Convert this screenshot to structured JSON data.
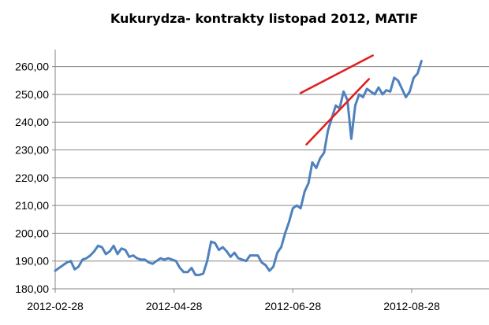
{
  "chart_data": {
    "type": "line",
    "title": "Kukurydza- kontrakty listopad 2012, MATIF",
    "xlabel": "",
    "ylabel": "",
    "ylim": [
      180,
      265
    ],
    "y_ticks": [
      "180,00",
      "190,00",
      "200,00",
      "210,00",
      "220,00",
      "230,00",
      "240,00",
      "250,00",
      "260,00"
    ],
    "y_tick_values": [
      180,
      190,
      200,
      210,
      220,
      230,
      240,
      250,
      260
    ],
    "x_ticks": [
      "2012-02-28",
      "2012-04-28",
      "2012-06-28",
      "2012-08-28"
    ],
    "x_tick_values": [
      0,
      61,
      122,
      183
    ],
    "grid": "horizontal",
    "series": [
      {
        "color": "#4f81bd",
        "x": [
          0,
          2,
          4,
          6,
          8,
          10,
          12,
          14,
          16,
          18,
          20,
          22,
          24,
          26,
          28,
          30,
          32,
          34,
          36,
          38,
          40,
          42,
          44,
          46,
          48,
          50,
          52,
          54,
          56,
          58,
          60,
          62,
          64,
          66,
          68,
          70,
          72,
          74,
          76,
          78,
          80,
          82,
          84,
          86,
          88,
          90,
          92,
          94,
          96,
          98,
          100,
          102,
          104,
          106,
          108,
          110,
          112,
          114,
          116,
          118,
          120,
          122,
          124,
          126,
          128,
          130,
          132,
          134,
          136,
          138,
          140,
          142,
          144,
          146,
          148,
          150,
          152,
          154,
          156,
          158,
          160,
          162,
          164,
          166,
          168,
          170,
          172,
          174,
          176,
          178,
          180,
          182,
          184,
          186,
          188
        ],
        "values": [
          186.5,
          187.5,
          188.5,
          189.5,
          190,
          187,
          188,
          190.5,
          191,
          192,
          193.5,
          195.5,
          195,
          192.5,
          193.5,
          195.5,
          192.5,
          194.5,
          194,
          191.5,
          192,
          191,
          190.5,
          190.5,
          189.5,
          189,
          190,
          191,
          190.5,
          191,
          190.5,
          190,
          187.5,
          186,
          186,
          187.5,
          185,
          185,
          185.5,
          190,
          197,
          196.5,
          194,
          195,
          193.5,
          191.5,
          193,
          191,
          190.5,
          190,
          192,
          192,
          192,
          189.5,
          188.5,
          186.5,
          188,
          193,
          195,
          200,
          204,
          209,
          210,
          209,
          215,
          218,
          225.5,
          223.5,
          227,
          229,
          237,
          241.5,
          246,
          245,
          251,
          248,
          234,
          246,
          250,
          249,
          252,
          251,
          250,
          252.5,
          250,
          251.5,
          251,
          256,
          255,
          252,
          249,
          251,
          256,
          257.5,
          262
        ]
      },
      {
        "color": "#e02020",
        "x": [
          126,
          163
        ],
        "values": [
          250.5,
          264
        ]
      },
      {
        "color": "#e02020",
        "x": [
          129,
          161
        ],
        "values": [
          232,
          255.5
        ]
      }
    ]
  }
}
